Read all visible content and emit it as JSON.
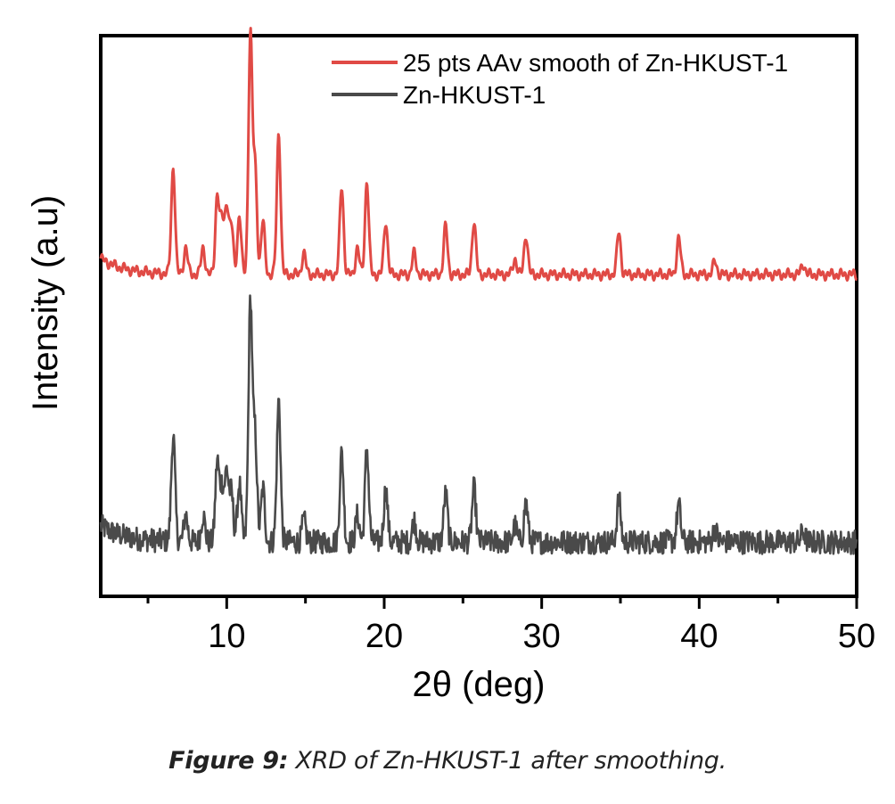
{
  "chart_data": {
    "type": "line",
    "xlabel": "2θ (deg)",
    "ylabel": "Intensity (a.u)",
    "xlim": [
      2,
      50
    ],
    "xticks": [
      10,
      20,
      30,
      40,
      50
    ],
    "yticks_shown": false,
    "legend_position": "top-right",
    "peaks": [
      {
        "x": 6.6,
        "h": 0.4
      },
      {
        "x": 7.4,
        "h": 0.1
      },
      {
        "x": 8.5,
        "h": 0.1
      },
      {
        "x": 9.4,
        "h": 0.3
      },
      {
        "x": 9.7,
        "h": 0.2
      },
      {
        "x": 10.0,
        "h": 0.26
      },
      {
        "x": 10.3,
        "h": 0.18
      },
      {
        "x": 10.8,
        "h": 0.22
      },
      {
        "x": 11.5,
        "h": 0.9
      },
      {
        "x": 11.8,
        "h": 0.4
      },
      {
        "x": 12.3,
        "h": 0.2
      },
      {
        "x": 13.3,
        "h": 0.53
      },
      {
        "x": 14.9,
        "h": 0.08
      },
      {
        "x": 17.3,
        "h": 0.33
      },
      {
        "x": 18.3,
        "h": 0.1
      },
      {
        "x": 18.9,
        "h": 0.35
      },
      {
        "x": 20.1,
        "h": 0.2
      },
      {
        "x": 21.9,
        "h": 0.08
      },
      {
        "x": 23.9,
        "h": 0.18
      },
      {
        "x": 25.7,
        "h": 0.2
      },
      {
        "x": 28.3,
        "h": 0.06
      },
      {
        "x": 29.0,
        "h": 0.15
      },
      {
        "x": 34.9,
        "h": 0.16
      },
      {
        "x": 38.7,
        "h": 0.14
      },
      {
        "x": 41.0,
        "h": 0.05
      },
      {
        "x": 46.6,
        "h": 0.04
      }
    ],
    "series": [
      {
        "name": "25 pts AAv smooth of Zn-HKUST-1",
        "color": "#e04a45",
        "smoothed": true,
        "offset": 1.0
      },
      {
        "name": "Zn-HKUST-1",
        "color": "#4a4a4a",
        "smoothed": false,
        "offset": 0.0
      }
    ]
  },
  "caption": {
    "bold": "Figure 9:",
    "text": " XRD of Zn-HKUST-1 after smoothing."
  }
}
